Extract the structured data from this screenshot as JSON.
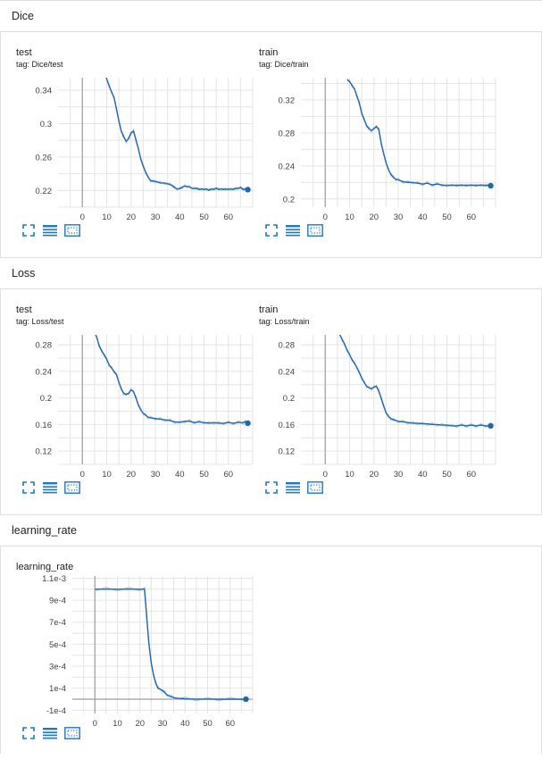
{
  "sections": [
    {
      "title": "Dice"
    },
    {
      "title": "Loss"
    },
    {
      "title": "learning_rate"
    }
  ],
  "colors": {
    "line": "#1f65b7",
    "raw": "#a8c4e4",
    "grid": "#e4e4e4",
    "axis": "#9e9e9e",
    "toolbar": "#1976d2"
  },
  "toolbar_icons": [
    "fullscreen-icon",
    "data-table-icon",
    "fit-domain-icon"
  ],
  "chart_data": [
    {
      "type": "line",
      "title": "test",
      "tag": "tag: Dice/test",
      "xlim": [
        -10,
        70
      ],
      "xticks": [
        0,
        10,
        20,
        30,
        40,
        50,
        60
      ],
      "ylim": [
        0.2,
        0.355
      ],
      "yticks": [
        0.22,
        0.26,
        0.3,
        0.34
      ],
      "ytick_labels": [
        "0.22",
        "0.26",
        "0.3",
        "0.34"
      ],
      "series": [
        {
          "values": [
            [
              9.5,
              0.358
            ],
            [
              11,
              0.345
            ],
            [
              12,
              0.338
            ],
            [
              13,
              0.331
            ],
            [
              14,
              0.318
            ],
            [
              15,
              0.303
            ],
            [
              16,
              0.291
            ],
            [
              17,
              0.284
            ],
            [
              18,
              0.279
            ],
            [
              19,
              0.282
            ],
            [
              20,
              0.289
            ],
            [
              21,
              0.291
            ],
            [
              22,
              0.281
            ],
            [
              23,
              0.27
            ],
            [
              24,
              0.258
            ],
            [
              25,
              0.249
            ],
            [
              26,
              0.242
            ],
            [
              27,
              0.236
            ],
            [
              28,
              0.232
            ],
            [
              29,
              0.231
            ],
            [
              30,
              0.231
            ],
            [
              32,
              0.229
            ],
            [
              34,
              0.229
            ],
            [
              36,
              0.227
            ],
            [
              37,
              0.226
            ],
            [
              38,
              0.223
            ],
            [
              39,
              0.222
            ],
            [
              40,
              0.222
            ],
            [
              41,
              0.224
            ],
            [
              42,
              0.225
            ],
            [
              43,
              0.225
            ],
            [
              44,
              0.224
            ],
            [
              45,
              0.223
            ],
            [
              46,
              0.222
            ],
            [
              47,
              0.223
            ],
            [
              48,
              0.221
            ],
            [
              49,
              0.222
            ],
            [
              50,
              0.221
            ],
            [
              51,
              0.222
            ],
            [
              52,
              0.22
            ],
            [
              53,
              0.222
            ],
            [
              54,
              0.221
            ],
            [
              55,
              0.223
            ],
            [
              56,
              0.221
            ],
            [
              57,
              0.222
            ],
            [
              58,
              0.221
            ],
            [
              59,
              0.222
            ],
            [
              60,
              0.221
            ],
            [
              61,
              0.222
            ],
            [
              62,
              0.221
            ],
            [
              63,
              0.223
            ],
            [
              64,
              0.222
            ],
            [
              65,
              0.224
            ],
            [
              66,
              0.221
            ],
            [
              67,
              0.222
            ],
            [
              68,
              0.221
            ]
          ]
        }
      ]
    },
    {
      "type": "line",
      "title": "train",
      "tag": "tag: Dice/train",
      "xlim": [
        -10,
        70
      ],
      "xticks": [
        0,
        10,
        20,
        30,
        40,
        50,
        60
      ],
      "ylim": [
        0.19,
        0.347
      ],
      "yticks": [
        0.2,
        0.24,
        0.28,
        0.32
      ],
      "ytick_labels": [
        "0.2",
        "0.24",
        "0.28",
        "0.32"
      ],
      "series": [
        {
          "values": [
            [
              9,
              0.345
            ],
            [
              10,
              0.342
            ],
            [
              11,
              0.338
            ],
            [
              12,
              0.333
            ],
            [
              13,
              0.325
            ],
            [
              14,
              0.316
            ],
            [
              15,
              0.304
            ],
            [
              16,
              0.296
            ],
            [
              17,
              0.289
            ],
            [
              18,
              0.285
            ],
            [
              19,
              0.283
            ],
            [
              20,
              0.285
            ],
            [
              21,
              0.288
            ],
            [
              22,
              0.284
            ],
            [
              23,
              0.268
            ],
            [
              24,
              0.255
            ],
            [
              25,
              0.244
            ],
            [
              26,
              0.235
            ],
            [
              27,
              0.23
            ],
            [
              28,
              0.226
            ],
            [
              29,
              0.224
            ],
            [
              30,
              0.223
            ],
            [
              32,
              0.221
            ],
            [
              34,
              0.22
            ],
            [
              36,
              0.22
            ],
            [
              38,
              0.219
            ],
            [
              40,
              0.218
            ],
            [
              42,
              0.219
            ],
            [
              44,
              0.217
            ],
            [
              46,
              0.218
            ],
            [
              48,
              0.217
            ],
            [
              50,
              0.216
            ],
            [
              52,
              0.217
            ],
            [
              54,
              0.216
            ],
            [
              56,
              0.217
            ],
            [
              58,
              0.216
            ],
            [
              60,
              0.217
            ],
            [
              62,
              0.216
            ],
            [
              64,
              0.217
            ],
            [
              66,
              0.216
            ],
            [
              67,
              0.217
            ],
            [
              68,
              0.216
            ]
          ]
        }
      ]
    },
    {
      "type": "line",
      "title": "test",
      "tag": "tag: Loss/test",
      "xlim": [
        -10,
        70
      ],
      "xticks": [
        0,
        10,
        20,
        30,
        40,
        50,
        60
      ],
      "ylim": [
        0.1,
        0.295
      ],
      "yticks": [
        0.12,
        0.16,
        0.2,
        0.24,
        0.28
      ],
      "ytick_labels": [
        "0.12",
        "0.16",
        "0.2",
        "0.24",
        "0.28"
      ],
      "series": [
        {
          "values": [
            [
              5,
              0.3
            ],
            [
              6,
              0.29
            ],
            [
              7,
              0.278
            ],
            [
              8,
              0.27
            ],
            [
              9,
              0.265
            ],
            [
              10,
              0.258
            ],
            [
              11,
              0.25
            ],
            [
              12,
              0.245
            ],
            [
              13,
              0.24
            ],
            [
              14,
              0.235
            ],
            [
              15,
              0.224
            ],
            [
              16,
              0.213
            ],
            [
              17,
              0.207
            ],
            [
              18,
              0.205
            ],
            [
              19,
              0.207
            ],
            [
              20,
              0.212
            ],
            [
              21,
              0.21
            ],
            [
              22,
              0.2
            ],
            [
              23,
              0.19
            ],
            [
              24,
              0.182
            ],
            [
              25,
              0.177
            ],
            [
              26,
              0.174
            ],
            [
              27,
              0.171
            ],
            [
              28,
              0.17
            ],
            [
              30,
              0.169
            ],
            [
              32,
              0.168
            ],
            [
              34,
              0.167
            ],
            [
              36,
              0.166
            ],
            [
              38,
              0.164
            ],
            [
              40,
              0.163
            ],
            [
              42,
              0.165
            ],
            [
              44,
              0.165
            ],
            [
              46,
              0.163
            ],
            [
              48,
              0.164
            ],
            [
              50,
              0.163
            ],
            [
              52,
              0.162
            ],
            [
              54,
              0.163
            ],
            [
              56,
              0.162
            ],
            [
              58,
              0.162
            ],
            [
              60,
              0.163
            ],
            [
              62,
              0.162
            ],
            [
              64,
              0.163
            ],
            [
              66,
              0.163
            ],
            [
              67,
              0.164
            ],
            [
              68,
              0.162
            ]
          ]
        }
      ]
    },
    {
      "type": "line",
      "title": "train",
      "tag": "tag: Loss/train",
      "xlim": [
        -10,
        70
      ],
      "xticks": [
        0,
        10,
        20,
        30,
        40,
        50,
        60
      ],
      "ylim": [
        0.1,
        0.295
      ],
      "yticks": [
        0.12,
        0.16,
        0.2,
        0.24,
        0.28
      ],
      "ytick_labels": [
        "0.12",
        "0.16",
        "0.2",
        "0.24",
        "0.28"
      ],
      "series": [
        {
          "values": [
            [
              5,
              0.3
            ],
            [
              6,
              0.295
            ],
            [
              7,
              0.288
            ],
            [
              8,
              0.28
            ],
            [
              9,
              0.272
            ],
            [
              10,
              0.265
            ],
            [
              11,
              0.258
            ],
            [
              12,
              0.252
            ],
            [
              13,
              0.246
            ],
            [
              14,
              0.238
            ],
            [
              15,
              0.23
            ],
            [
              16,
              0.223
            ],
            [
              17,
              0.218
            ],
            [
              18,
              0.215
            ],
            [
              19,
              0.214
            ],
            [
              20,
              0.216
            ],
            [
              21,
              0.218
            ],
            [
              22,
              0.21
            ],
            [
              23,
              0.2
            ],
            [
              24,
              0.188
            ],
            [
              25,
              0.178
            ],
            [
              26,
              0.172
            ],
            [
              27,
              0.169
            ],
            [
              28,
              0.167
            ],
            [
              30,
              0.165
            ],
            [
              32,
              0.164
            ],
            [
              34,
              0.163
            ],
            [
              36,
              0.162
            ],
            [
              38,
              0.162
            ],
            [
              40,
              0.161
            ],
            [
              42,
              0.161
            ],
            [
              44,
              0.16
            ],
            [
              46,
              0.16
            ],
            [
              48,
              0.159
            ],
            [
              50,
              0.159
            ],
            [
              52,
              0.158
            ],
            [
              54,
              0.158
            ],
            [
              56,
              0.159
            ],
            [
              58,
              0.158
            ],
            [
              60,
              0.159
            ],
            [
              62,
              0.158
            ],
            [
              64,
              0.159
            ],
            [
              66,
              0.158
            ],
            [
              68,
              0.158
            ]
          ]
        }
      ]
    },
    {
      "type": "line",
      "title": "learning_rate",
      "tag": "",
      "xlim": [
        -10,
        70
      ],
      "xticks": [
        0,
        10,
        20,
        30,
        40,
        50,
        60
      ],
      "ylim": [
        -0.00013,
        0.00112
      ],
      "yticks": [
        -0.0001,
        0.0001,
        0.0003,
        0.0005,
        0.0007,
        0.0009,
        0.0011
      ],
      "ytick_labels": [
        "-1e-4",
        "1e-4",
        "3e-4",
        "5e-4",
        "7e-4",
        "9e-4",
        "1.1e-3"
      ],
      "series": [
        {
          "values": [
            [
              0,
              0.001
            ],
            [
              5,
              0.001
            ],
            [
              10,
              0.001
            ],
            [
              15,
              0.001
            ],
            [
              20,
              0.001
            ],
            [
              22,
              0.001
            ],
            [
              23,
              0.00075
            ],
            [
              24,
              0.0005
            ],
            [
              25,
              0.00033
            ],
            [
              26,
              0.00022
            ],
            [
              27,
              0.00015
            ],
            [
              28,
              0.0001
            ],
            [
              30,
              8e-05
            ],
            [
              31,
              6e-05
            ],
            [
              32,
              4e-05
            ],
            [
              34,
              2e-05
            ],
            [
              36,
              1e-05
            ],
            [
              40,
              3e-06
            ],
            [
              45,
              1e-06
            ],
            [
              50,
              5e-07
            ],
            [
              55,
              2e-07
            ],
            [
              60,
              1e-07
            ],
            [
              67,
              0.0
            ]
          ]
        }
      ]
    }
  ]
}
